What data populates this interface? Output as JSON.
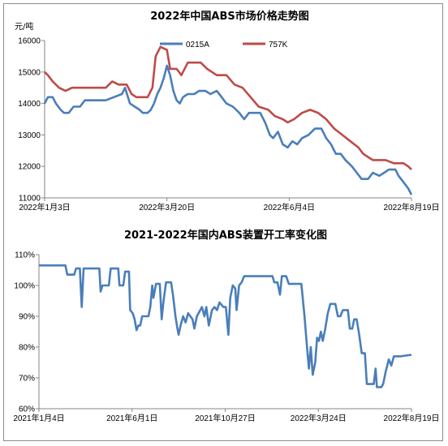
{
  "colors": {
    "blue": "#4a7ebb",
    "red": "#be4b48",
    "axis": "#868686"
  },
  "chart_data": [
    {
      "type": "line",
      "title": "2022年中国ABS市场价格走势图",
      "ylabel": "元/吨",
      "ylim": [
        11000,
        16000
      ],
      "yticks": [
        "11000",
        "12000",
        "13000",
        "14000",
        "15000",
        "16000"
      ],
      "xticks": [
        "2022年1月3日",
        "2022年3月20日",
        "2022年6月4日",
        "2022年8月19日"
      ],
      "x_range": [
        "2022-01-03",
        "2022-08-19"
      ],
      "legend_position": "top",
      "grid": false,
      "series": [
        {
          "name": "0215A",
          "color": "#4a7ebb",
          "points": [
            [
              "2022-01-03",
              14000
            ],
            [
              "2022-01-05",
              14200
            ],
            [
              "2022-01-08",
              14200
            ],
            [
              "2022-01-10",
              14000
            ],
            [
              "2022-01-13",
              13800
            ],
            [
              "2022-01-15",
              13700
            ],
            [
              "2022-01-18",
              13700
            ],
            [
              "2022-01-21",
              13900
            ],
            [
              "2022-01-25",
              13900
            ],
            [
              "2022-01-28",
              14100
            ],
            [
              "2022-02-10",
              14100
            ],
            [
              "2022-02-15",
              14200
            ],
            [
              "2022-02-20",
              14300
            ],
            [
              "2022-02-22",
              14500
            ],
            [
              "2022-02-25",
              14000
            ],
            [
              "2022-02-28",
              13900
            ],
            [
              "2022-03-03",
              13800
            ],
            [
              "2022-03-05",
              13700
            ],
            [
              "2022-03-08",
              13700
            ],
            [
              "2022-03-10",
              13800
            ],
            [
              "2022-03-12",
              14000
            ],
            [
              "2022-03-14",
              14300
            ],
            [
              "2022-03-16",
              14500
            ],
            [
              "2022-03-18",
              14800
            ],
            [
              "2022-03-20",
              15200
            ],
            [
              "2022-03-22",
              14900
            ],
            [
              "2022-03-24",
              14400
            ],
            [
              "2022-03-26",
              14100
            ],
            [
              "2022-03-28",
              14000
            ],
            [
              "2022-03-30",
              14200
            ],
            [
              "2022-04-02",
              14300
            ],
            [
              "2022-04-06",
              14300
            ],
            [
              "2022-04-09",
              14400
            ],
            [
              "2022-04-13",
              14400
            ],
            [
              "2022-04-16",
              14300
            ],
            [
              "2022-04-20",
              14400
            ],
            [
              "2022-04-23",
              14200
            ],
            [
              "2022-04-26",
              14000
            ],
            [
              "2022-04-30",
              13900
            ],
            [
              "2022-05-04",
              13700
            ],
            [
              "2022-05-07",
              13500
            ],
            [
              "2022-05-10",
              13700
            ],
            [
              "2022-05-17",
              13700
            ],
            [
              "2022-05-20",
              13400
            ],
            [
              "2022-05-23",
              13000
            ],
            [
              "2022-05-25",
              12900
            ],
            [
              "2022-05-28",
              13100
            ],
            [
              "2022-05-31",
              12700
            ],
            [
              "2022-06-03",
              12600
            ],
            [
              "2022-06-06",
              12800
            ],
            [
              "2022-06-09",
              12700
            ],
            [
              "2022-06-12",
              12900
            ],
            [
              "2022-06-16",
              13000
            ],
            [
              "2022-06-20",
              13200
            ],
            [
              "2022-06-24",
              13200
            ],
            [
              "2022-06-27",
              12900
            ],
            [
              "2022-06-30",
              12700
            ],
            [
              "2022-07-03",
              12400
            ],
            [
              "2022-07-06",
              12400
            ],
            [
              "2022-07-09",
              12200
            ],
            [
              "2022-07-13",
              12000
            ],
            [
              "2022-07-16",
              11800
            ],
            [
              "2022-07-19",
              11600
            ],
            [
              "2022-07-23",
              11600
            ],
            [
              "2022-07-26",
              11800
            ],
            [
              "2022-07-30",
              11700
            ],
            [
              "2022-08-02",
              11800
            ],
            [
              "2022-08-05",
              11900
            ],
            [
              "2022-08-09",
              11900
            ],
            [
              "2022-08-11",
              11700
            ],
            [
              "2022-08-14",
              11500
            ],
            [
              "2022-08-17",
              11300
            ],
            [
              "2022-08-19",
              11100
            ]
          ]
        },
        {
          "name": "757K",
          "color": "#be4b48",
          "points": [
            [
              "2022-01-03",
              15000
            ],
            [
              "2022-01-05",
              14900
            ],
            [
              "2022-01-08",
              14700
            ],
            [
              "2022-01-12",
              14500
            ],
            [
              "2022-01-16",
              14400
            ],
            [
              "2022-01-20",
              14500
            ],
            [
              "2022-02-10",
              14500
            ],
            [
              "2022-02-14",
              14700
            ],
            [
              "2022-02-18",
              14600
            ],
            [
              "2022-02-23",
              14600
            ],
            [
              "2022-02-26",
              14300
            ],
            [
              "2022-03-01",
              14200
            ],
            [
              "2022-03-08",
              14200
            ],
            [
              "2022-03-11",
              14500
            ],
            [
              "2022-03-13",
              15500
            ],
            [
              "2022-03-16",
              15800
            ],
            [
              "2022-03-20",
              15700
            ],
            [
              "2022-03-22",
              15100
            ],
            [
              "2022-03-26",
              15100
            ],
            [
              "2022-03-29",
              14900
            ],
            [
              "2022-04-02",
              15300
            ],
            [
              "2022-04-10",
              15300
            ],
            [
              "2022-04-14",
              15100
            ],
            [
              "2022-04-20",
              14900
            ],
            [
              "2022-04-26",
              14900
            ],
            [
              "2022-05-01",
              14600
            ],
            [
              "2022-05-06",
              14500
            ],
            [
              "2022-05-11",
              14200
            ],
            [
              "2022-05-16",
              13900
            ],
            [
              "2022-05-22",
              13800
            ],
            [
              "2022-05-26",
              13600
            ],
            [
              "2022-05-31",
              13500
            ],
            [
              "2022-06-03",
              13400
            ],
            [
              "2022-06-07",
              13500
            ],
            [
              "2022-06-12",
              13700
            ],
            [
              "2022-06-17",
              13800
            ],
            [
              "2022-06-22",
              13700
            ],
            [
              "2022-06-27",
              13500
            ],
            [
              "2022-07-02",
              13200
            ],
            [
              "2022-07-07",
              13000
            ],
            [
              "2022-07-12",
              12800
            ],
            [
              "2022-07-17",
              12600
            ],
            [
              "2022-07-20",
              12400
            ],
            [
              "2022-07-23",
              12300
            ],
            [
              "2022-07-26",
              12200
            ],
            [
              "2022-07-30",
              12200
            ],
            [
              "2022-08-03",
              12200
            ],
            [
              "2022-08-08",
              12100
            ],
            [
              "2022-08-14",
              12100
            ],
            [
              "2022-08-17",
              12000
            ],
            [
              "2022-08-19",
              11900
            ]
          ]
        }
      ]
    },
    {
      "type": "line",
      "title": "2021-2022年国内ABS装置开工率变化图",
      "ylim": [
        60,
        110
      ],
      "yticks": [
        "60%",
        "70%",
        "80%",
        "90%",
        "100%",
        "110%"
      ],
      "xticks": [
        "2021年1月4日",
        "2021年6月1日",
        "2021年10月27日",
        "2022年3月24日",
        "2022年8月19日"
      ],
      "x_range": [
        "2021-01-04",
        "2022-08-19"
      ],
      "grid": false,
      "series": [
        {
          "color": "#4a7ebb",
          "points": [
            [
              "2021-01-04",
              106.5
            ],
            [
              "2021-02-15",
              106.5
            ],
            [
              "2021-02-18",
              103.5
            ],
            [
              "2021-03-01",
              103.5
            ],
            [
              "2021-03-04",
              105.5
            ],
            [
              "2021-03-10",
              105.5
            ],
            [
              "2021-03-13",
              93
            ],
            [
              "2021-03-16",
              105.5
            ],
            [
              "2021-04-10",
              105.5
            ],
            [
              "2021-04-12",
              98
            ],
            [
              "2021-04-15",
              100
            ],
            [
              "2021-04-25",
              100
            ],
            [
              "2021-04-28",
              105.5
            ],
            [
              "2021-05-10",
              105.5
            ],
            [
              "2021-05-12",
              100
            ],
            [
              "2021-05-18",
              100
            ],
            [
              "2021-05-21",
              104.5
            ],
            [
              "2021-05-27",
              104.5
            ],
            [
              "2021-05-29",
              92
            ],
            [
              "2021-06-02",
              91
            ],
            [
              "2021-06-05",
              89
            ],
            [
              "2021-06-08",
              85.5
            ],
            [
              "2021-06-11",
              87
            ],
            [
              "2021-06-14",
              87
            ],
            [
              "2021-06-17",
              90
            ],
            [
              "2021-06-27",
              90
            ],
            [
              "2021-06-30",
              93
            ],
            [
              "2021-07-03",
              100
            ],
            [
              "2021-07-05",
              96
            ],
            [
              "2021-07-09",
              100.5
            ],
            [
              "2021-07-15",
              100.5
            ],
            [
              "2021-07-18",
              89
            ],
            [
              "2021-07-21",
              95
            ],
            [
              "2021-07-25",
              101
            ],
            [
              "2021-08-02",
              101
            ],
            [
              "2021-08-05",
              97
            ],
            [
              "2021-08-09",
              90
            ],
            [
              "2021-08-12",
              86
            ],
            [
              "2021-08-14",
              84
            ],
            [
              "2021-08-17",
              87
            ],
            [
              "2021-08-21",
              90
            ],
            [
              "2021-08-25",
              88
            ],
            [
              "2021-08-29",
              91
            ],
            [
              "2021-09-05",
              89
            ],
            [
              "2021-09-08",
              86
            ],
            [
              "2021-09-12",
              90
            ],
            [
              "2021-09-20",
              93
            ],
            [
              "2021-09-24",
              90
            ],
            [
              "2021-09-27",
              93
            ],
            [
              "2021-10-01",
              87
            ],
            [
              "2021-10-06",
              92
            ],
            [
              "2021-10-10",
              93
            ],
            [
              "2021-10-14",
              92
            ],
            [
              "2021-10-18",
              94.5
            ],
            [
              "2021-10-24",
              93
            ],
            [
              "2021-10-28",
              93
            ],
            [
              "2021-11-01",
              84
            ],
            [
              "2021-11-04",
              96
            ],
            [
              "2021-11-08",
              100
            ],
            [
              "2021-11-12",
              99
            ],
            [
              "2021-11-14",
              92
            ],
            [
              "2021-11-18",
              100
            ],
            [
              "2021-11-22",
              101
            ],
            [
              "2021-11-26",
              103
            ],
            [
              "2022-01-10",
              103
            ],
            [
              "2022-01-13",
              101
            ],
            [
              "2022-01-18",
              101
            ],
            [
              "2022-01-22",
              97
            ],
            [
              "2022-01-25",
              103
            ],
            [
              "2022-02-01",
              103
            ],
            [
              "2022-02-05",
              100.5
            ],
            [
              "2022-02-25",
              100.5
            ],
            [
              "2022-03-02",
              90
            ],
            [
              "2022-03-06",
              80
            ],
            [
              "2022-03-09",
              73
            ],
            [
              "2022-03-12",
              80
            ],
            [
              "2022-03-15",
              71
            ],
            [
              "2022-03-19",
              75
            ],
            [
              "2022-03-22",
              83
            ],
            [
              "2022-03-25",
              82
            ],
            [
              "2022-03-28",
              85
            ],
            [
              "2022-03-31",
              82
            ],
            [
              "2022-04-04",
              86
            ],
            [
              "2022-04-08",
              91
            ],
            [
              "2022-04-12",
              94
            ],
            [
              "2022-04-20",
              94
            ],
            [
              "2022-04-24",
              90
            ],
            [
              "2022-04-28",
              90
            ],
            [
              "2022-05-02",
              92
            ],
            [
              "2022-05-10",
              92
            ],
            [
              "2022-05-13",
              86
            ],
            [
              "2022-05-17",
              86
            ],
            [
              "2022-05-20",
              89
            ],
            [
              "2022-05-24",
              89
            ],
            [
              "2022-05-28",
              84
            ],
            [
              "2022-06-01",
              78
            ],
            [
              "2022-06-06",
              78
            ],
            [
              "2022-06-09",
              68
            ],
            [
              "2022-06-20",
              68
            ],
            [
              "2022-06-23",
              73
            ],
            [
              "2022-06-25",
              67
            ],
            [
              "2022-07-02",
              67
            ],
            [
              "2022-07-05",
              68
            ],
            [
              "2022-07-09",
              72
            ],
            [
              "2022-07-14",
              76
            ],
            [
              "2022-07-18",
              74
            ],
            [
              "2022-07-22",
              77
            ],
            [
              "2022-08-02",
              77
            ],
            [
              "2022-08-19",
              77.5
            ]
          ]
        }
      ]
    }
  ]
}
